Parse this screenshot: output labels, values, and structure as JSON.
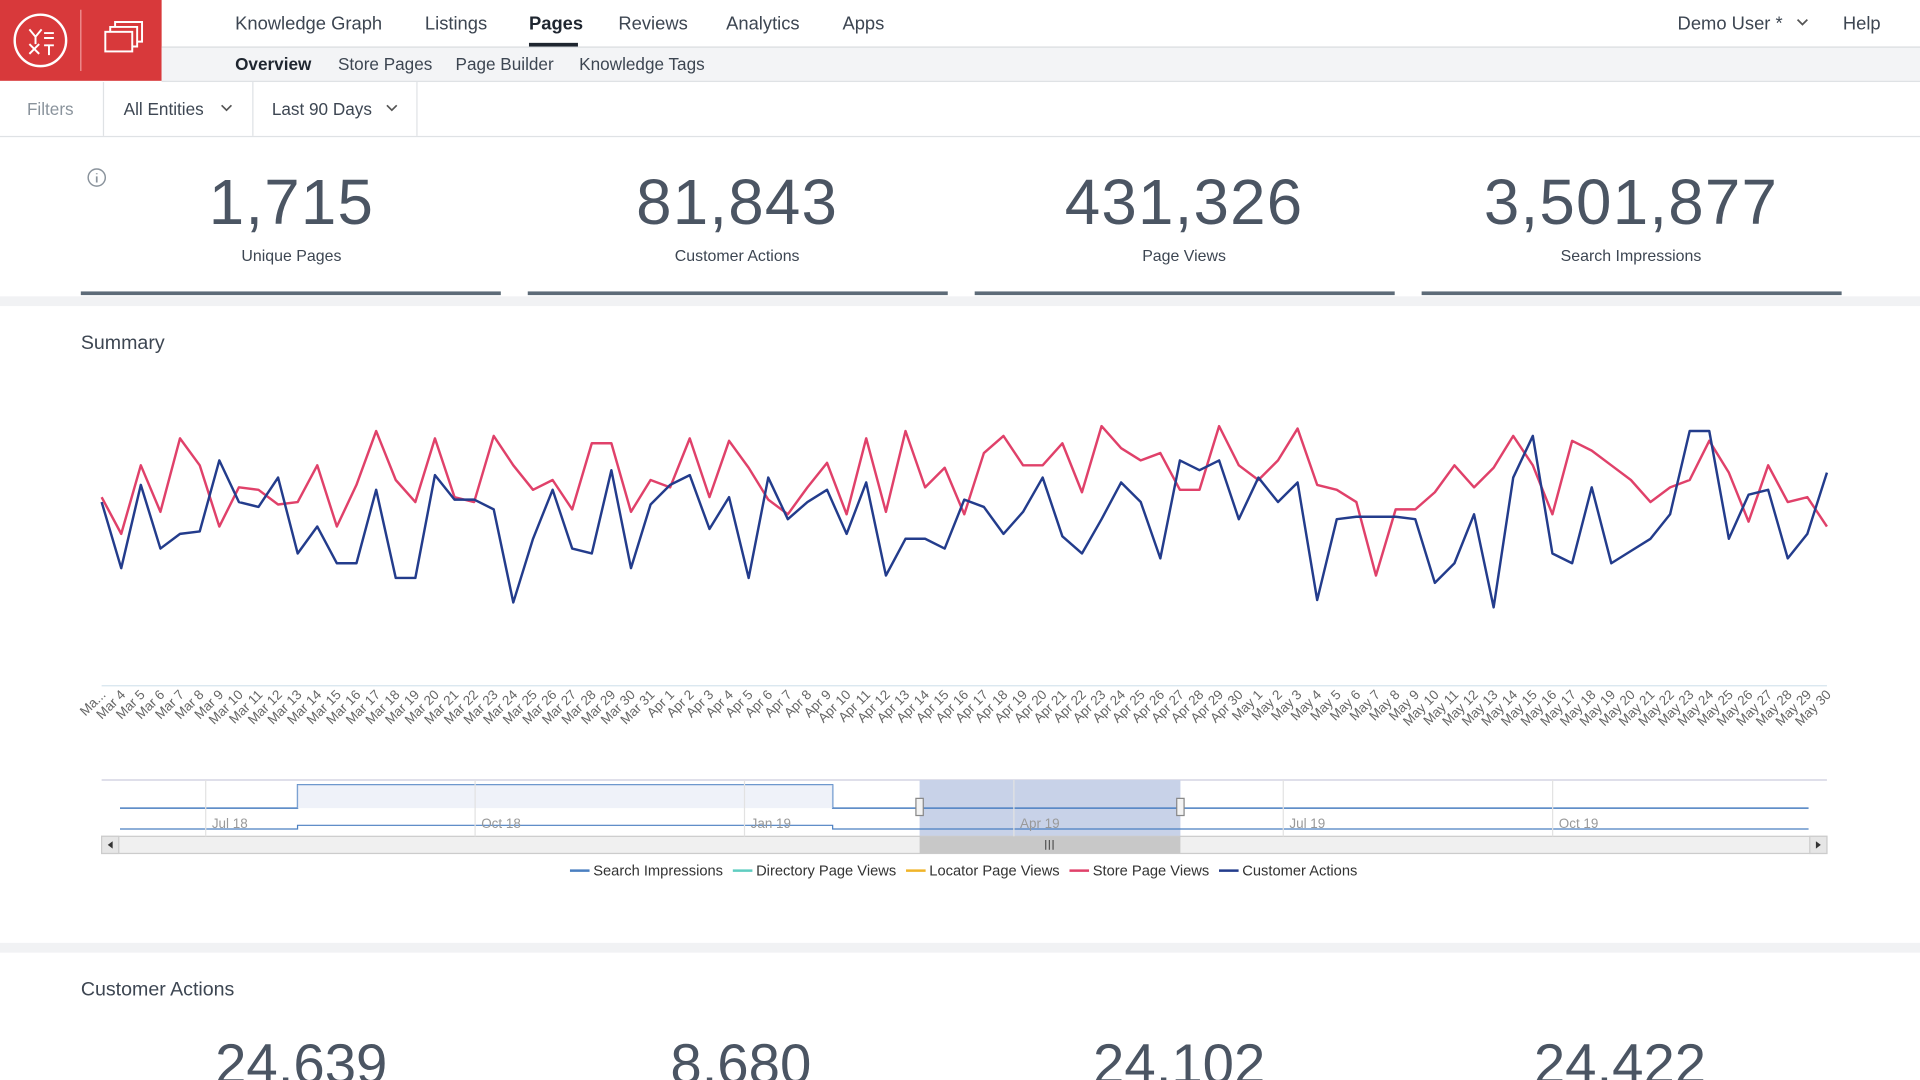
{
  "nav": {
    "items": [
      "Knowledge Graph",
      "Listings",
      "Pages",
      "Reviews",
      "Analytics",
      "Apps"
    ],
    "active": 2,
    "user": "Demo User *",
    "help": "Help"
  },
  "subnav": {
    "items": [
      "Overview",
      "Store Pages",
      "Page Builder",
      "Knowledge Tags"
    ],
    "active": 0
  },
  "filters": {
    "label": "Filters",
    "entities": "All Entities",
    "range": "Last 90 Days"
  },
  "kpis": [
    {
      "value": "1,715",
      "label": "Unique Pages"
    },
    {
      "value": "81,843",
      "label": "Customer Actions"
    },
    {
      "value": "431,326",
      "label": "Page Views"
    },
    {
      "value": "3,501,877",
      "label": "Search Impressions"
    }
  ],
  "chart_data": {
    "type": "line",
    "title": "Summary",
    "categories": [
      "Ma...",
      "Mar 4",
      "Mar 5",
      "Mar 6",
      "Mar 7",
      "Mar 8",
      "Mar 9",
      "Mar 10",
      "Mar 11",
      "Mar 12",
      "Mar 13",
      "Mar 14",
      "Mar 15",
      "Mar 16",
      "Mar 17",
      "Mar 18",
      "Mar 19",
      "Mar 20",
      "Mar 21",
      "Mar 22",
      "Mar 23",
      "Mar 24",
      "Mar 25",
      "Mar 26",
      "Mar 27",
      "Mar 28",
      "Mar 29",
      "Mar 30",
      "Mar 31",
      "Apr 1",
      "Apr 2",
      "Apr 3",
      "Apr 4",
      "Apr 5",
      "Apr 6",
      "Apr 7",
      "Apr 8",
      "Apr 9",
      "Apr 10",
      "Apr 11",
      "Apr 12",
      "Apr 13",
      "Apr 14",
      "Apr 15",
      "Apr 16",
      "Apr 17",
      "Apr 18",
      "Apr 19",
      "Apr 20",
      "Apr 21",
      "Apr 22",
      "Apr 23",
      "Apr 24",
      "Apr 25",
      "Apr 26",
      "Apr 27",
      "Apr 28",
      "Apr 29",
      "Apr 30",
      "May 1",
      "May 2",
      "May 3",
      "May 4",
      "May 5",
      "May 6",
      "May 7",
      "May 8",
      "May 9",
      "May 10",
      "May 11",
      "May 12",
      "May 13",
      "May 14",
      "May 15",
      "May 16",
      "May 17",
      "May 18",
      "May 19",
      "May 20",
      "May 21",
      "May 22",
      "May 23",
      "May 24",
      "May 25",
      "May 26",
      "May 27",
      "May 28",
      "May 29",
      "May 30"
    ],
    "ylim": [
      0,
      100
    ],
    "series": [
      {
        "name": "Search Impressions",
        "color": "#4a7fc1",
        "values": [
          null,
          null,
          null,
          null,
          null,
          null,
          null,
          null,
          null,
          null,
          null,
          null,
          null,
          null,
          null,
          null,
          null,
          null,
          null,
          null,
          null,
          null,
          null,
          null,
          null,
          null,
          null,
          null,
          null,
          null,
          null,
          null,
          null,
          null,
          null,
          null,
          null,
          null,
          null,
          null,
          null,
          null,
          null,
          null,
          null,
          null,
          null,
          null,
          null,
          null,
          null,
          null,
          null,
          null,
          null,
          null,
          null,
          null,
          null,
          null,
          null,
          null,
          null,
          null,
          null,
          null,
          null,
          null,
          null,
          null,
          null,
          null,
          null,
          null,
          null,
          null,
          null,
          null,
          null,
          null,
          null,
          null,
          null,
          null,
          null,
          null,
          null,
          null,
          null
        ]
      },
      {
        "name": "Directory Page Views",
        "color": "#5fcdc1",
        "values": [
          null,
          null,
          null,
          null,
          null,
          null,
          null,
          null,
          null,
          null,
          null,
          null,
          null,
          null,
          null,
          null,
          null,
          null,
          null,
          null,
          null,
          null,
          null,
          null,
          null,
          null,
          null,
          null,
          null,
          null,
          null,
          null,
          null,
          null,
          null,
          null,
          null,
          null,
          null,
          null,
          null,
          null,
          null,
          null,
          null,
          null,
          null,
          null,
          null,
          null,
          null,
          null,
          null,
          null,
          null,
          null,
          null,
          null,
          null,
          null,
          null,
          null,
          null,
          null,
          null,
          null,
          null,
          null,
          null,
          null,
          null,
          null,
          null,
          null,
          null,
          null,
          null,
          null,
          null,
          null,
          null,
          null,
          null,
          null,
          null,
          null,
          null,
          null,
          null
        ]
      },
      {
        "name": "Locator Page Views",
        "color": "#f0b429",
        "values": [
          null,
          null,
          null,
          null,
          null,
          null,
          null,
          null,
          null,
          null,
          null,
          null,
          null,
          null,
          null,
          null,
          null,
          null,
          null,
          null,
          null,
          null,
          null,
          null,
          null,
          null,
          null,
          null,
          null,
          null,
          null,
          null,
          null,
          null,
          null,
          null,
          null,
          null,
          null,
          null,
          null,
          null,
          null,
          null,
          null,
          null,
          null,
          null,
          null,
          null,
          null,
          null,
          null,
          null,
          null,
          null,
          null,
          null,
          null,
          null,
          null,
          null,
          null,
          null,
          null,
          null,
          null,
          null,
          null,
          null,
          null,
          null,
          null,
          null,
          null,
          null,
          null,
          null,
          null,
          null,
          null,
          null,
          null,
          null,
          null,
          null,
          null,
          null,
          null
        ]
      },
      {
        "name": "Store Page Views",
        "color": "#e0416a",
        "values": [
          57,
          42,
          70,
          51,
          81,
          70,
          45,
          61,
          60,
          54,
          55,
          70,
          45,
          62,
          84,
          64,
          55,
          81,
          57,
          55,
          82,
          70,
          60,
          64,
          52,
          79,
          79,
          51,
          64,
          61,
          81,
          57,
          80,
          69,
          56,
          50,
          61,
          71,
          50,
          81,
          51,
          84,
          61,
          69,
          50,
          75,
          82,
          70,
          70,
          79,
          59,
          86,
          77,
          72,
          75,
          60,
          60,
          86,
          70,
          64,
          72,
          85,
          62,
          60,
          55,
          25,
          52,
          52,
          59,
          70,
          61,
          69,
          82,
          70,
          50,
          80,
          76,
          70,
          64,
          55,
          61,
          64,
          80,
          67,
          47,
          70,
          55,
          57,
          45
        ]
      },
      {
        "name": "Customer Actions",
        "color": "#233c8c",
        "values": [
          55,
          28,
          62,
          36,
          42,
          43,
          72,
          55,
          53,
          65,
          34,
          45,
          30,
          30,
          60,
          24,
          24,
          66,
          56,
          56,
          52,
          14,
          40,
          60,
          36,
          34,
          68,
          28,
          54,
          62,
          66,
          44,
          57,
          24,
          65,
          48,
          55,
          60,
          42,
          63,
          25,
          40,
          40,
          36,
          56,
          53,
          42,
          51,
          65,
          41,
          34,
          48,
          63,
          55,
          32,
          72,
          68,
          72,
          48,
          65,
          55,
          63,
          15,
          48,
          49,
          49,
          49,
          48,
          22,
          30,
          50,
          12,
          65,
          82,
          34,
          30,
          61,
          30,
          35,
          40,
          50,
          84,
          84,
          40,
          58,
          60,
          32,
          42,
          67
        ]
      }
    ],
    "navigator_labels": [
      "Jul 18",
      "Oct 18",
      "Jan 19",
      "Apr 19",
      "Jul 19",
      "Oct 19"
    ]
  },
  "customer_actions": {
    "title": "Customer Actions",
    "values": [
      "24,639",
      "8,680",
      "24,102",
      "24,422"
    ]
  }
}
